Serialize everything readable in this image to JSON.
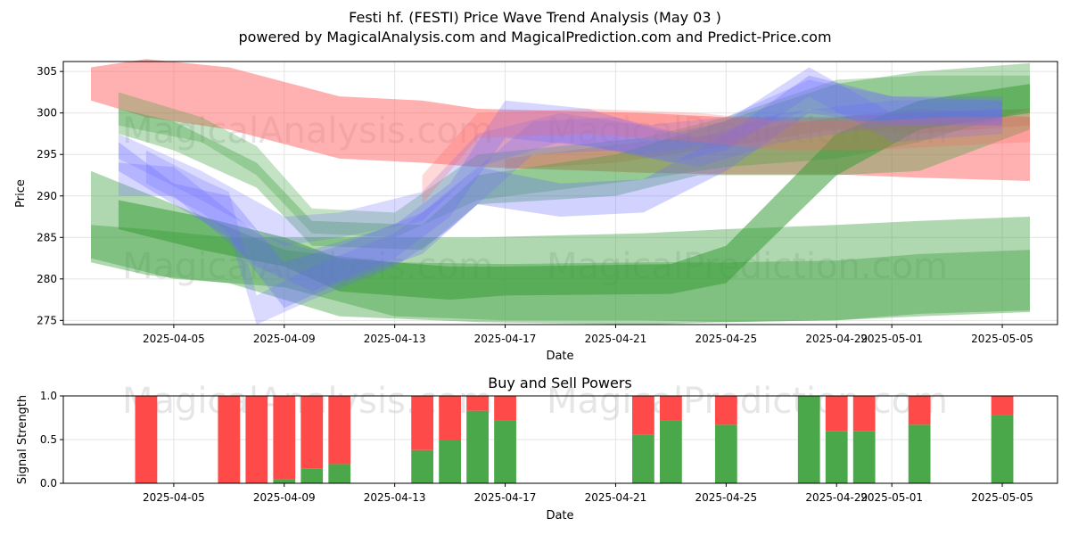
{
  "figure": {
    "title": "Festi hf. (FESTI) Price Wave Trend Analysis (May 03 )",
    "subtitle": "powered by MagicalAnalysis.com and MagicalPrediction.com and Predict-Price.com",
    "watermarks": [
      "MagicalAnalysis.com",
      "MagicalPrediction.com"
    ]
  },
  "chart_data": [
    {
      "type": "area",
      "xlabel": "Date",
      "ylabel": "Price",
      "xticks": [
        "2025-04-05",
        "2025-04-09",
        "2025-04-13",
        "2025-04-17",
        "2025-04-21",
        "2025-04-25",
        "2025-04-29",
        "2025-05-01",
        "2025-05-05"
      ],
      "ylim": [
        274.5,
        306.2
      ],
      "yticks": [
        275,
        280,
        285,
        290,
        295,
        300,
        305
      ],
      "grid": true,
      "colors": {
        "red": "#ff6464",
        "green": "#3a9e3a",
        "blue": "#6a6aff"
      },
      "bands": [
        {
          "color": "red",
          "opacity": 0.5,
          "x": [
            "2025-04-02",
            "2025-04-04",
            "2025-04-07",
            "2025-04-11",
            "2025-04-14",
            "2025-04-16",
            "2025-04-22",
            "2025-04-25",
            "2025-04-29",
            "2025-05-02",
            "2025-05-06"
          ],
          "upper": [
            305.5,
            306.5,
            305.5,
            302.0,
            301.5,
            300.5,
            300.0,
            299.5,
            299.5,
            300.0,
            300.5
          ],
          "lower": [
            301.5,
            299.5,
            298.0,
            294.5,
            294.0,
            293.5,
            292.8,
            292.6,
            292.6,
            292.2,
            291.8
          ]
        },
        {
          "color": "red",
          "opacity": 0.35,
          "x": [
            "2025-04-17",
            "2025-04-21",
            "2025-04-25",
            "2025-04-29",
            "2025-05-02",
            "2025-05-06"
          ],
          "upper": [
            294.5,
            296.2,
            297.5,
            299.5,
            300.5,
            299.5
          ],
          "lower": [
            293.2,
            294.0,
            296.0,
            298.0,
            297.5,
            298.5
          ]
        },
        {
          "color": "green",
          "opacity": 0.55,
          "x": [
            "2025-04-03",
            "2025-04-06",
            "2025-04-09",
            "2025-04-11",
            "2025-04-15",
            "2025-04-17",
            "2025-04-23",
            "2025-04-25",
            "2025-04-29",
            "2025-05-02",
            "2025-05-06"
          ],
          "upper": [
            289.5,
            287.5,
            285.0,
            282.5,
            281.5,
            281.5,
            281.8,
            284.0,
            297.5,
            301.5,
            303.5
          ],
          "lower": [
            286.0,
            283.5,
            281.5,
            278.5,
            277.5,
            278.0,
            278.2,
            279.5,
            292.5,
            298.0,
            300.0
          ]
        },
        {
          "color": "green",
          "opacity": 0.4,
          "x": [
            "2025-04-02",
            "2025-04-04",
            "2025-04-07",
            "2025-04-11",
            "2025-04-16",
            "2025-04-22",
            "2025-04-25",
            "2025-04-29",
            "2025-05-02",
            "2025-05-06"
          ],
          "upper": [
            286.5,
            286.0,
            285.0,
            285.0,
            285.0,
            285.5,
            286.0,
            286.5,
            287.0,
            287.5
          ],
          "lower": [
            282.0,
            280.5,
            279.5,
            275.5,
            274.8,
            274.5,
            274.8,
            275.0,
            275.5,
            276.0
          ]
        },
        {
          "color": "green",
          "opacity": 0.4,
          "x": [
            "2025-04-02",
            "2025-04-05",
            "2025-04-09",
            "2025-04-13",
            "2025-04-17",
            "2025-04-22",
            "2025-04-25",
            "2025-04-29",
            "2025-05-02",
            "2025-05-06"
          ],
          "upper": [
            293.0,
            289.0,
            283.5,
            282.0,
            281.8,
            282.0,
            282.0,
            282.2,
            283.0,
            283.5
          ],
          "lower": [
            282.5,
            280.0,
            279.0,
            275.5,
            275.0,
            275.0,
            274.8,
            275.0,
            275.8,
            276.2
          ]
        },
        {
          "color": "green",
          "opacity": 0.35,
          "x": [
            "2025-04-03",
            "2025-04-05",
            "2025-04-08",
            "2025-04-10",
            "2025-04-14",
            "2025-04-16",
            "2025-04-21",
            "2025-04-24",
            "2025-04-29",
            "2025-05-02",
            "2025-05-06"
          ],
          "upper": [
            300.5,
            299.0,
            294.0,
            287.0,
            286.5,
            292.5,
            295.0,
            298.0,
            303.5,
            305.0,
            306.0
          ],
          "lower": [
            297.5,
            295.5,
            291.0,
            284.0,
            283.5,
            289.0,
            290.0,
            292.5,
            292.5,
            293.0,
            298.0
          ]
        },
        {
          "color": "green",
          "opacity": 0.3,
          "x": [
            "2025-04-03",
            "2025-04-06",
            "2025-04-08",
            "2025-04-10",
            "2025-04-13",
            "2025-04-16",
            "2025-04-22",
            "2025-04-25",
            "2025-04-29",
            "2025-05-02",
            "2025-05-06"
          ],
          "upper": [
            302.5,
            299.5,
            296.0,
            288.5,
            288.0,
            295.0,
            297.0,
            299.5,
            304.0,
            304.5,
            304.5
          ],
          "lower": [
            298.5,
            296.5,
            292.5,
            285.5,
            285.0,
            289.5,
            292.0,
            293.5,
            294.5,
            296.5,
            300.5
          ]
        },
        {
          "color": "blue",
          "opacity": 0.3,
          "x": [
            "2025-04-03",
            "2025-04-05",
            "2025-04-07",
            "2025-04-09",
            "2025-04-11",
            "2025-04-14",
            "2025-04-16",
            "2025-04-19",
            "2025-04-22",
            "2025-04-25",
            "2025-04-28",
            "2025-05-01",
            "2025-05-05"
          ],
          "upper": [
            296.5,
            291.5,
            290.0,
            282.0,
            284.0,
            288.0,
            293.5,
            291.5,
            292.0,
            297.5,
            304.5,
            302.0,
            301.5
          ],
          "lower": [
            293.0,
            289.0,
            285.0,
            276.5,
            279.5,
            283.0,
            289.0,
            287.5,
            288.0,
            293.0,
            300.0,
            298.5,
            298.5
          ]
        },
        {
          "color": "blue",
          "opacity": 0.28,
          "x": [
            "2025-04-03",
            "2025-04-05",
            "2025-04-08",
            "2025-04-10",
            "2025-04-13",
            "2025-04-15",
            "2025-04-17",
            "2025-04-20",
            "2025-04-23",
            "2025-04-25",
            "2025-04-28",
            "2025-05-01",
            "2025-05-05"
          ],
          "upper": [
            294.0,
            293.5,
            285.5,
            283.5,
            286.5,
            291.5,
            301.5,
            300.5,
            297.5,
            299.0,
            305.5,
            300.0,
            300.5
          ],
          "lower": [
            290.0,
            290.0,
            281.5,
            278.5,
            282.5,
            287.5,
            297.0,
            296.0,
            294.0,
            295.5,
            302.0,
            296.5,
            297.5
          ]
        },
        {
          "color": "blue",
          "opacity": 0.25,
          "x": [
            "2025-04-03",
            "2025-04-06",
            "2025-04-09",
            "2025-04-11",
            "2025-04-14",
            "2025-04-16",
            "2025-04-19",
            "2025-04-22",
            "2025-04-25",
            "2025-04-28",
            "2025-05-01",
            "2025-05-05"
          ],
          "upper": [
            297.5,
            293.0,
            287.5,
            288.0,
            290.5,
            297.5,
            300.0,
            298.5,
            299.5,
            304.0,
            302.0,
            302.0
          ],
          "lower": [
            294.5,
            289.5,
            284.0,
            285.0,
            287.0,
            293.5,
            296.5,
            295.0,
            296.5,
            300.5,
            299.0,
            298.5
          ]
        },
        {
          "color": "blue",
          "opacity": 0.25,
          "x": [
            "2025-04-04",
            "2025-04-06",
            "2025-04-07",
            "2025-04-08",
            "2025-04-10",
            "2025-04-13",
            "2025-04-15",
            "2025-04-18",
            "2025-04-21",
            "2025-04-24",
            "2025-04-27",
            "2025-05-01",
            "2025-05-05"
          ],
          "upper": [
            295.5,
            292.0,
            290.5,
            278.0,
            281.5,
            285.5,
            290.5,
            299.0,
            299.5,
            297.0,
            300.0,
            301.5,
            301.5
          ],
          "lower": [
            291.5,
            288.0,
            285.5,
            274.5,
            277.5,
            281.5,
            286.0,
            295.0,
            295.5,
            293.5,
            296.5,
            298.5,
            299.0
          ]
        },
        {
          "color": "red",
          "opacity": 0.25,
          "x": [
            "2025-04-14",
            "2025-04-16",
            "2025-04-20",
            "2025-04-24",
            "2025-04-27",
            "2025-04-30",
            "2025-05-03",
            "2025-05-06"
          ],
          "upper": [
            292.5,
            300.0,
            300.5,
            300.0,
            299.0,
            299.0,
            299.5,
            299.5
          ],
          "lower": [
            289.0,
            297.0,
            297.5,
            296.5,
            295.5,
            295.5,
            296.0,
            296.5
          ]
        }
      ]
    },
    {
      "type": "bar",
      "title": "Buy and Sell Powers",
      "xlabel": "Date",
      "ylabel": "Signal Strength",
      "ylim": [
        0,
        1.0
      ],
      "yticks": [
        "0.0",
        "0.5",
        "1.0"
      ],
      "xticks": [
        "2025-04-05",
        "2025-04-09",
        "2025-04-13",
        "2025-04-17",
        "2025-04-21",
        "2025-04-25",
        "2025-04-29",
        "2025-05-01",
        "2025-05-05"
      ],
      "colors": {
        "buy": "#4aa84a",
        "sell": "#ff4a4a"
      },
      "x": [
        "2025-04-04",
        "2025-04-07",
        "2025-04-08",
        "2025-04-09",
        "2025-04-10",
        "2025-04-11",
        "2025-04-14",
        "2025-04-15",
        "2025-04-16",
        "2025-04-17",
        "2025-04-22",
        "2025-04-23",
        "2025-04-25",
        "2025-04-28",
        "2025-04-29",
        "2025-04-30",
        "2025-05-02",
        "2025-05-05"
      ],
      "series": [
        {
          "name": "buy",
          "values": [
            0.0,
            0.0,
            0.0,
            0.05,
            0.17,
            0.22,
            0.38,
            0.5,
            0.83,
            0.72,
            0.56,
            0.72,
            0.67,
            1.0,
            0.6,
            0.6,
            0.67,
            0.78
          ]
        },
        {
          "name": "sell",
          "values": [
            1.0,
            1.0,
            1.0,
            0.95,
            0.83,
            0.78,
            0.62,
            0.5,
            0.17,
            0.28,
            0.44,
            0.28,
            0.33,
            0.0,
            0.4,
            0.4,
            0.33,
            0.22
          ]
        }
      ]
    }
  ]
}
